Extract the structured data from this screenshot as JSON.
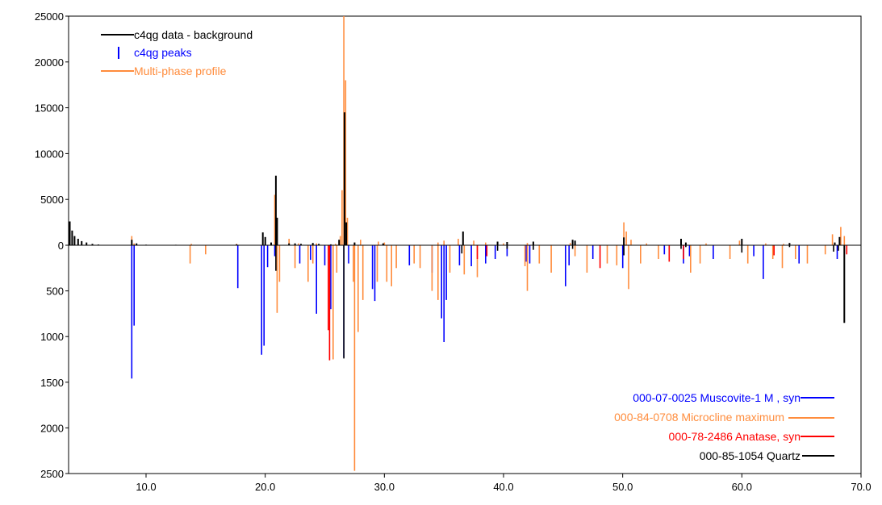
{
  "chart_data": {
    "type": "line",
    "title": "",
    "xlabel": "",
    "ylabel": "",
    "xlim": [
      3.5,
      70.0
    ],
    "x_ticks": [
      "10.0",
      "20.0",
      "30.0",
      "40.0",
      "50.0",
      "60.0",
      "70.0"
    ],
    "y_ticks_upper": [
      "25000",
      "20000",
      "15000",
      "10000",
      "5000",
      "0"
    ],
    "y_ticks_lower": [
      "500",
      "1000",
      "1500",
      "2000",
      "2500"
    ],
    "upper_ylim": [
      0,
      25000
    ],
    "lower_ylim": [
      0,
      2500
    ],
    "grid": false,
    "colors": {
      "data": "#000000",
      "peaks": "#0000ff",
      "profile": "#ff8c3c",
      "muscovite": "#0000ff",
      "microcline": "#ff8c3c",
      "anatase": "#ff0000",
      "quartz": "#000000"
    },
    "legend_top": [
      {
        "label": "c4qg data - background",
        "color": "#000000",
        "marker": "line"
      },
      {
        "label": "c4qg peaks",
        "color": "#0000ff",
        "marker": "bar"
      },
      {
        "label": "Multi-phase profile",
        "color": "#ff8c3c",
        "marker": "line"
      }
    ],
    "legend_bottom": [
      {
        "label": "000-07-0025 Muscovite-1  M , syn",
        "color": "#0000ff"
      },
      {
        "label": "000-84-0708 Microcline maximum",
        "color": "#ff8c3c"
      },
      {
        "label": "000-78-2486 Anatase, syn",
        "color": "#ff0000"
      },
      {
        "label": "000-85-1054 Quartz",
        "color": "#000000"
      }
    ],
    "series": [
      {
        "name": "c4qg data - background",
        "points": [
          [
            3.6,
            2600
          ],
          [
            3.8,
            1600
          ],
          [
            4.0,
            1000
          ],
          [
            4.3,
            700
          ],
          [
            4.6,
            450
          ],
          [
            5.0,
            300
          ],
          [
            5.5,
            150
          ],
          [
            6.0,
            80
          ],
          [
            6.5,
            30
          ],
          [
            8.8,
            600
          ],
          [
            9.2,
            200
          ],
          [
            10.0,
            60
          ],
          [
            12.5,
            50
          ],
          [
            17.6,
            100
          ],
          [
            19.8,
            1400
          ],
          [
            20.0,
            900
          ],
          [
            20.5,
            300
          ],
          [
            20.9,
            7600
          ],
          [
            21.0,
            3000
          ],
          [
            22.0,
            200
          ],
          [
            22.5,
            200
          ],
          [
            23.0,
            150
          ],
          [
            24.0,
            250
          ],
          [
            24.5,
            150
          ],
          [
            25.5,
            100
          ],
          [
            26.2,
            600
          ],
          [
            26.65,
            14500
          ],
          [
            26.8,
            2500
          ],
          [
            27.5,
            300
          ],
          [
            29.9,
            200
          ],
          [
            36.6,
            1500
          ],
          [
            39.5,
            400
          ],
          [
            40.3,
            350
          ],
          [
            42.5,
            400
          ],
          [
            45.8,
            600
          ],
          [
            46.0,
            500
          ],
          [
            50.1,
            850
          ],
          [
            54.9,
            700
          ],
          [
            55.3,
            300
          ],
          [
            60.0,
            700
          ],
          [
            64.0,
            250
          ],
          [
            67.8,
            300
          ],
          [
            68.2,
            900
          ],
          [
            68.6,
            -850
          ]
        ]
      },
      {
        "name": "Multi-phase profile",
        "points": [
          [
            8.8,
            1000
          ],
          [
            9.0,
            200
          ],
          [
            13.8,
            150
          ],
          [
            17.6,
            150
          ],
          [
            20.8,
            5500
          ],
          [
            21.0,
            3000
          ],
          [
            22.0,
            700
          ],
          [
            22.8,
            200
          ],
          [
            24.3,
            200
          ],
          [
            25.9,
            150
          ],
          [
            26.3,
            1000
          ],
          [
            26.45,
            6000
          ],
          [
            26.6,
            25000
          ],
          [
            26.75,
            18000
          ],
          [
            26.9,
            3000
          ],
          [
            27.5,
            300
          ],
          [
            28.0,
            600
          ],
          [
            29.5,
            400
          ],
          [
            30.0,
            300
          ],
          [
            34.5,
            300
          ],
          [
            35.0,
            500
          ],
          [
            36.2,
            700
          ],
          [
            36.6,
            600
          ],
          [
            37.5,
            500
          ],
          [
            38.5,
            300
          ],
          [
            40.0,
            200
          ],
          [
            42.0,
            250
          ],
          [
            45.6,
            250
          ],
          [
            50.1,
            2500
          ],
          [
            50.3,
            1500
          ],
          [
            50.7,
            600
          ],
          [
            52.0,
            200
          ],
          [
            54.9,
            700
          ],
          [
            57.0,
            200
          ],
          [
            59.8,
            500
          ],
          [
            62.0,
            200
          ],
          [
            63.5,
            150
          ],
          [
            67.6,
            1200
          ],
          [
            68.3,
            2000
          ],
          [
            68.6,
            1000
          ]
        ]
      },
      {
        "name": "Muscovite-1 M, syn",
        "points": [
          [
            8.8,
            -1460
          ],
          [
            9.0,
            -880
          ],
          [
            17.7,
            -470
          ],
          [
            19.7,
            -1200
          ],
          [
            19.9,
            -1100
          ],
          [
            20.2,
            -240
          ],
          [
            20.8,
            -120
          ],
          [
            22.9,
            -200
          ],
          [
            23.8,
            -160
          ],
          [
            24.3,
            -750
          ],
          [
            25.0,
            -220
          ],
          [
            25.5,
            -700
          ],
          [
            26.6,
            -1230
          ],
          [
            27.0,
            -200
          ],
          [
            29.0,
            -480
          ],
          [
            29.2,
            -610
          ],
          [
            32.1,
            -220
          ],
          [
            34.0,
            -300
          ],
          [
            34.8,
            -800
          ],
          [
            35.0,
            -1060
          ],
          [
            35.2,
            -600
          ],
          [
            36.3,
            -220
          ],
          [
            37.3,
            -230
          ],
          [
            38.5,
            -200
          ],
          [
            39.3,
            -150
          ],
          [
            40.3,
            -120
          ],
          [
            41.9,
            -180
          ],
          [
            42.2,
            -200
          ],
          [
            45.2,
            -450
          ],
          [
            45.5,
            -220
          ],
          [
            47.5,
            -150
          ],
          [
            50.0,
            -250
          ],
          [
            53.5,
            -100
          ],
          [
            55.1,
            -200
          ],
          [
            55.6,
            -120
          ],
          [
            57.6,
            -150
          ],
          [
            61.0,
            -120
          ],
          [
            61.8,
            -370
          ],
          [
            64.8,
            -200
          ],
          [
            68.0,
            -150
          ]
        ]
      },
      {
        "name": "Microcline maximum",
        "points": [
          [
            13.7,
            -200
          ],
          [
            15.0,
            -100
          ],
          [
            21.0,
            -740
          ],
          [
            21.2,
            -400
          ],
          [
            22.5,
            -250
          ],
          [
            23.6,
            -400
          ],
          [
            24.0,
            -200
          ],
          [
            25.7,
            -1250
          ],
          [
            26.0,
            -300
          ],
          [
            27.4,
            -400
          ],
          [
            27.5,
            -2470
          ],
          [
            27.8,
            -950
          ],
          [
            28.2,
            -600
          ],
          [
            29.4,
            -400
          ],
          [
            30.2,
            -400
          ],
          [
            30.6,
            -450
          ],
          [
            31.0,
            -250
          ],
          [
            32.5,
            -200
          ],
          [
            33.0,
            -250
          ],
          [
            34.0,
            -500
          ],
          [
            34.5,
            -600
          ],
          [
            35.5,
            -300
          ],
          [
            36.7,
            -320
          ],
          [
            37.8,
            -350
          ],
          [
            41.8,
            -230
          ],
          [
            42.0,
            -500
          ],
          [
            43.0,
            -200
          ],
          [
            44.0,
            -300
          ],
          [
            46.0,
            -120
          ],
          [
            47.0,
            -300
          ],
          [
            48.7,
            -200
          ],
          [
            49.5,
            -220
          ],
          [
            50.5,
            -480
          ],
          [
            51.5,
            -200
          ],
          [
            53.0,
            -150
          ],
          [
            55.7,
            -300
          ],
          [
            56.5,
            -200
          ],
          [
            59.0,
            -150
          ],
          [
            60.5,
            -200
          ],
          [
            62.6,
            -150
          ],
          [
            63.4,
            -250
          ],
          [
            64.5,
            -150
          ],
          [
            65.5,
            -200
          ],
          [
            67.0,
            -100
          ]
        ]
      },
      {
        "name": "Anatase, syn",
        "points": [
          [
            25.3,
            -930
          ],
          [
            25.4,
            -1260
          ],
          [
            37.8,
            -150
          ],
          [
            38.6,
            -120
          ],
          [
            48.1,
            -250
          ],
          [
            53.9,
            -180
          ],
          [
            55.1,
            -150
          ],
          [
            62.7,
            -110
          ],
          [
            68.8,
            -100
          ]
        ]
      },
      {
        "name": "Quartz",
        "points": [
          [
            20.9,
            -280
          ],
          [
            26.6,
            -1240
          ],
          [
            36.5,
            -90
          ],
          [
            39.5,
            -60
          ],
          [
            40.3,
            -40
          ],
          [
            42.5,
            -50
          ],
          [
            45.8,
            -40
          ],
          [
            50.1,
            -110
          ],
          [
            54.9,
            -40
          ],
          [
            55.3,
            -20
          ],
          [
            60.0,
            -80
          ],
          [
            64.0,
            -20
          ],
          [
            67.7,
            -70
          ],
          [
            68.1,
            -60
          ]
        ]
      }
    ]
  }
}
